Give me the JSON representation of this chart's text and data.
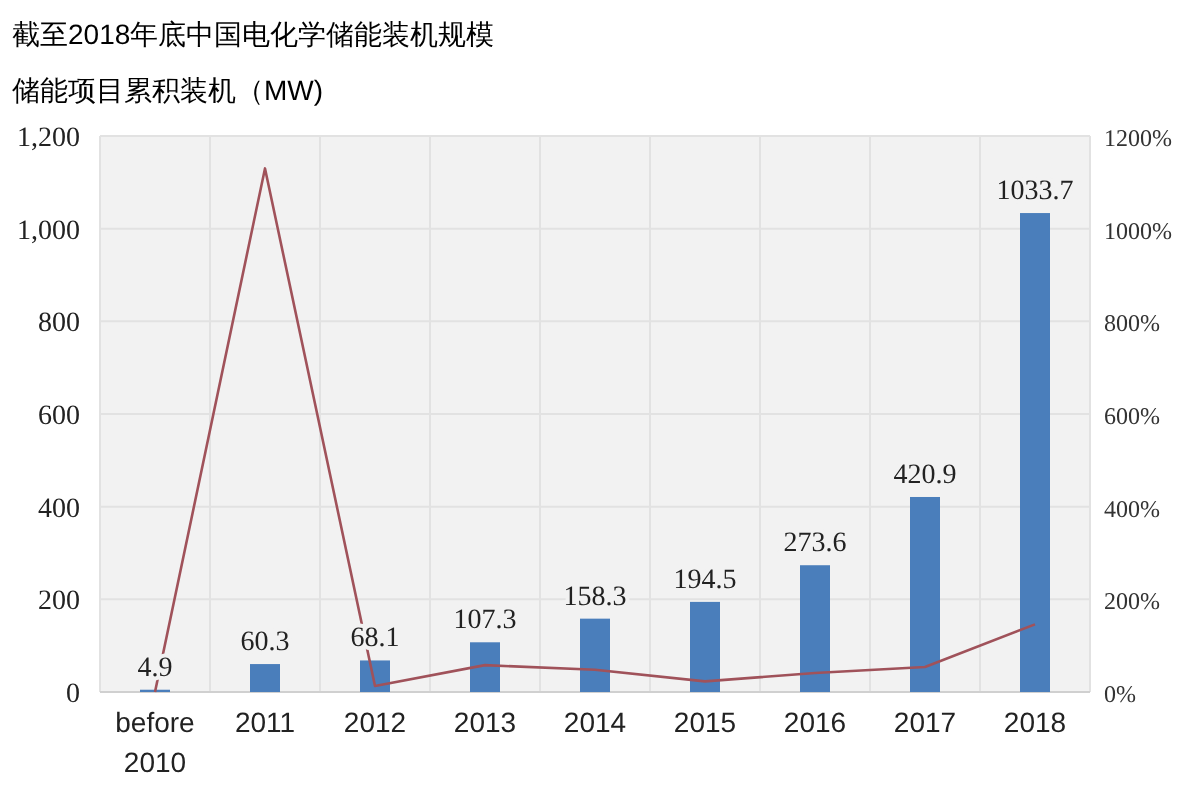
{
  "chart_data": {
    "type": "bar",
    "title": "截至2018年底中国电化学储能装机规模",
    "subtitle": "储能项目累积装机（MW)",
    "categories": [
      "before 2010",
      "2011",
      "2012",
      "2013",
      "2014",
      "2015",
      "2016",
      "2017",
      "2018"
    ],
    "series": [
      {
        "color": "#4a7ebb",
        "values": [
          4.9,
          60.3,
          68.1,
          107.3,
          158.3,
          194.5,
          273.6,
          420.9,
          1033.7
        ],
        "value_labels": [
          "4.9",
          "60.3",
          "68.1",
          "107.3",
          "158.3",
          "194.5",
          "273.6",
          "420.9",
          "1033.7"
        ]
      },
      {
        "type": "line",
        "axis": "y2",
        "color": "#a0525a",
        "values": [
          0,
          1130,
          13,
          58,
          48,
          23,
          41,
          54,
          146
        ]
      }
    ],
    "ylim": [
      0,
      1200
    ],
    "yticks": [
      0,
      200,
      400,
      600,
      800,
      {
        "value": 1000,
        "label": "1,000"
      },
      {
        "value": 1200,
        "label": "1,200"
      }
    ],
    "y2lim": [
      0,
      1200
    ],
    "y2ticks": [
      {
        "value": 0,
        "label": "0%"
      },
      {
        "value": 200,
        "label": "200%"
      },
      {
        "value": 400,
        "label": "400%"
      },
      {
        "value": 600,
        "label": "600%"
      },
      {
        "value": 800,
        "label": "800%"
      },
      {
        "value": 1000,
        "label": "1000%"
      },
      {
        "value": 1200,
        "label": "1200%"
      }
    ],
    "grid": true
  }
}
